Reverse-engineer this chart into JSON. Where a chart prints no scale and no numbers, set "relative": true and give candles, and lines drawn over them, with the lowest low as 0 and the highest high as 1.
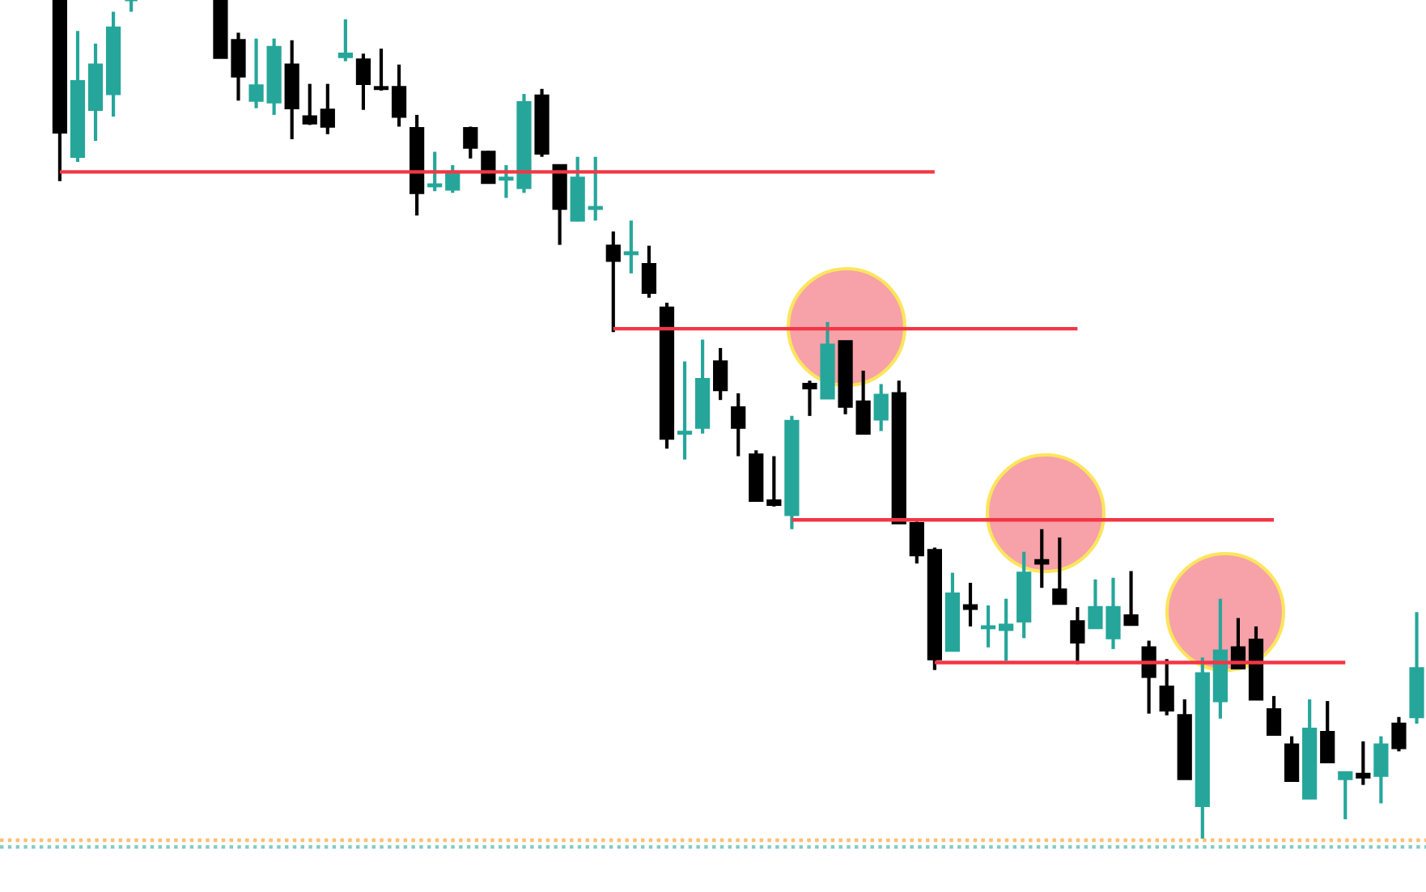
{
  "chart_data": {
    "type": "candlestick",
    "relative": true,
    "tick_labels": false,
    "categories": [
      null,
      null,
      null,
      null,
      null,
      null,
      null,
      null,
      null,
      null,
      null,
      null,
      null,
      null,
      null,
      null,
      null,
      null,
      null,
      null,
      null,
      null,
      null,
      null,
      null,
      null,
      null,
      null,
      null,
      null,
      null,
      null,
      null,
      null,
      null,
      null,
      null,
      null,
      null,
      null,
      null,
      null,
      null,
      null,
      null,
      null,
      null,
      null,
      null,
      null,
      null,
      null,
      null,
      null,
      null,
      null,
      null,
      null,
      null,
      null,
      null,
      null,
      null,
      null,
      null,
      null,
      null,
      null,
      null,
      null,
      null,
      null,
      null,
      null,
      null,
      null,
      null
    ],
    "ohlc": [
      [
        1.0,
        1.0,
        0.784,
        0.842
      ],
      [
        0.813,
        0.963,
        0.807,
        0.903
      ],
      [
        0.869,
        0.948,
        0.832,
        0.923
      ],
      [
        0.888,
        0.986,
        0.861,
        0.967
      ],
      [
        1.0,
        1.0,
        0.986,
        1.0
      ],
      null,
      null,
      null,
      null,
      [
        1.0,
        1.0,
        0.931,
        0.931
      ],
      [
        0.952,
        0.961,
        0.88,
        0.909
      ],
      [
        0.88,
        0.954,
        0.871,
        0.898
      ],
      [
        0.878,
        0.954,
        0.863,
        0.944
      ],
      [
        0.923,
        0.952,
        0.834,
        0.871
      ],
      [
        0.861,
        0.9,
        0.851,
        0.853
      ],
      [
        0.869,
        0.9,
        0.84,
        0.849
      ],
      [
        0.932,
        0.977,
        0.927,
        0.936
      ],
      [
        0.929,
        0.936,
        0.869,
        0.9
      ],
      [
        0.896,
        0.942,
        0.892,
        0.894
      ],
      [
        0.896,
        0.923,
        0.849,
        0.861
      ],
      [
        0.847,
        0.863,
        0.743,
        0.77
      ],
      [
        0.778,
        0.819,
        0.772,
        0.78
      ],
      [
        0.774,
        0.803,
        0.77,
        0.795
      ],
      [
        0.847,
        0.849,
        0.811,
        0.824
      ],
      [
        0.819,
        0.82,
        0.782,
        0.782
      ],
      [
        0.786,
        0.803,
        0.764,
        0.788
      ],
      [
        0.776,
        0.888,
        0.77,
        0.878
      ],
      [
        0.886,
        0.894,
        0.813,
        0.817
      ],
      [
        0.803,
        0.803,
        0.708,
        0.751
      ],
      [
        0.737,
        0.813,
        0.736,
        0.788
      ],
      [
        0.751,
        0.813,
        0.737,
        0.753
      ],
      [
        0.707,
        0.724,
        0.604,
        0.689
      ],
      [
        0.697,
        0.737,
        0.674,
        0.699
      ],
      [
        0.685,
        0.707,
        0.645,
        0.651
      ],
      [
        0.633,
        0.639,
        0.465,
        0.477
      ],
      [
        0.483,
        0.569,
        0.452,
        0.485
      ],
      [
        0.49,
        0.595,
        0.483,
        0.548
      ],
      [
        0.569,
        0.585,
        0.523,
        0.535
      ],
      [
        0.514,
        0.531,
        0.456,
        0.49
      ],
      [
        0.458,
        0.463,
        0.403,
        0.403
      ],
      [
        0.403,
        0.456,
        0.396,
        0.398
      ],
      [
        0.386,
        0.504,
        0.369,
        0.498
      ],
      [
        0.542,
        0.546,
        0.504,
        0.537
      ],
      [
        0.525,
        0.616,
        0.525,
        0.589
      ],
      [
        0.593,
        0.593,
        0.506,
        0.515
      ],
      [
        0.521,
        0.558,
        0.483,
        0.483
      ],
      [
        0.5,
        0.542,
        0.486,
        0.529
      ],
      [
        0.531,
        0.546,
        0.376,
        0.376
      ],
      [
        0.376,
        0.378,
        0.328,
        0.338
      ],
      [
        0.344,
        0.347,
        0.201,
        0.214
      ],
      [
        0.224,
        0.317,
        0.224,
        0.292
      ],
      [
        0.278,
        0.305,
        0.253,
        0.274
      ],
      [
        0.251,
        0.278,
        0.228,
        0.253
      ],
      [
        0.249,
        0.286,
        0.212,
        0.255
      ],
      [
        0.259,
        0.342,
        0.239,
        0.317
      ],
      [
        0.332,
        0.369,
        0.299,
        0.328
      ],
      [
        0.297,
        0.359,
        0.28,
        0.28
      ],
      [
        0.259,
        0.276,
        0.208,
        0.234
      ],
      [
        0.251,
        0.309,
        0.251,
        0.276
      ],
      [
        0.239,
        0.311,
        0.226,
        0.276
      ],
      [
        0.266,
        0.319,
        0.255,
        0.255
      ],
      [
        0.228,
        0.236,
        0.149,
        0.193
      ],
      [
        0.181,
        0.214,
        0.147,
        0.153
      ],
      [
        0.147,
        0.166,
        0.071,
        0.071
      ],
      [
        0.039,
        0.216,
        0.0,
        0.197
      ],
      [
        0.164,
        0.286,
        0.143,
        0.224
      ],
      [
        0.228,
        0.263,
        0.203,
        0.203
      ],
      [
        0.237,
        0.253,
        0.166,
        0.166
      ],
      [
        0.154,
        0.17,
        0.124,
        0.124
      ],
      [
        0.112,
        0.122,
        0.069,
        0.069
      ],
      [
        0.048,
        0.166,
        0.048,
        0.131
      ],
      [
        0.127,
        0.164,
        0.091,
        0.091
      ],
      [
        0.071,
        0.079,
        0.023,
        0.079
      ],
      [
        0.077,
        0.116,
        0.064,
        0.073
      ],
      [
        0.075,
        0.122,
        0.042,
        0.112
      ],
      [
        0.137,
        0.145,
        0.104,
        0.108
      ],
      [
        0.145,
        0.27,
        0.137,
        0.203
      ]
    ],
    "colors": [
      "#000000",
      "#26a69a",
      "#26a69a",
      "#26a69a",
      "#26a69a",
      null,
      null,
      null,
      null,
      "#000000",
      "#000000",
      "#26a69a",
      "#26a69a",
      "#000000",
      "#000000",
      "#000000",
      "#26a69a",
      "#000000",
      "#000000",
      "#000000",
      "#000000",
      "#26a69a",
      "#26a69a",
      "#000000",
      "#000000",
      "#26a69a",
      "#26a69a",
      "#000000",
      "#000000",
      "#26a69a",
      "#26a69a",
      "#000000",
      "#26a69a",
      "#000000",
      "#000000",
      "#26a69a",
      "#26a69a",
      "#000000",
      "#000000",
      "#000000",
      "#000000",
      "#26a69a",
      "#000000",
      "#26a69a",
      "#000000",
      "#000000",
      "#26a69a",
      "#000000",
      "#000000",
      "#000000",
      "#26a69a",
      "#000000",
      "#26a69a",
      "#26a69a",
      "#26a69a",
      "#000000",
      "#000000",
      "#000000",
      "#26a69a",
      "#26a69a",
      "#000000",
      "#000000",
      "#000000",
      "#000000",
      "#26a69a",
      "#26a69a",
      "#000000",
      "#000000",
      "#000000",
      "#000000",
      "#26a69a",
      "#000000",
      "#26a69a",
      "#000000",
      "#26a69a",
      "#000000",
      "#26a69a"
    ],
    "series": [
      {
        "type": "line",
        "color": "#f23645",
        "values": [
          0.795,
          0.795,
          0.795,
          0.795,
          0.795,
          0.795,
          0.795,
          0.795,
          0.795,
          0.795,
          0.795,
          0.795,
          0.795,
          0.795,
          0.795,
          0.795,
          0.795,
          0.795,
          0.795,
          0.795,
          0.795,
          0.795,
          0.795,
          0.795,
          0.795,
          0.795,
          0.795,
          0.795,
          0.795,
          0.795,
          0.795,
          0.795,
          0.795,
          0.795,
          0.795,
          0.795,
          0.795,
          0.795,
          0.795,
          0.795,
          0.795,
          0.795,
          0.795,
          0.795,
          0.795,
          0.795,
          0.795,
          0.795,
          0.795,
          0.795,
          null,
          null,
          null,
          null,
          null,
          null,
          null,
          null,
          null,
          null,
          null,
          null,
          null,
          null,
          null,
          null,
          null,
          null,
          null,
          null,
          null,
          null,
          null,
          null,
          null,
          null,
          null
        ]
      },
      {
        "type": "line",
        "color": "#f23645",
        "values": [
          null,
          null,
          null,
          null,
          null,
          null,
          null,
          null,
          null,
          null,
          null,
          null,
          null,
          null,
          null,
          null,
          null,
          null,
          null,
          null,
          null,
          null,
          null,
          null,
          null,
          null,
          null,
          null,
          null,
          null,
          null,
          0.608,
          0.608,
          0.608,
          0.608,
          0.608,
          0.608,
          0.608,
          0.608,
          0.608,
          0.608,
          0.608,
          0.608,
          0.608,
          0.608,
          0.608,
          0.608,
          0.608,
          0.608,
          0.608,
          0.608,
          0.608,
          0.608,
          0.608,
          0.608,
          0.608,
          0.608,
          0.608,
          null,
          null,
          null,
          null,
          null,
          null,
          null,
          null,
          null,
          null,
          null,
          null,
          null,
          null,
          null,
          null,
          null,
          null,
          null
        ]
      },
      {
        "type": "line",
        "color": "#f23645",
        "values": [
          null,
          null,
          null,
          null,
          null,
          null,
          null,
          null,
          null,
          null,
          null,
          null,
          null,
          null,
          null,
          null,
          null,
          null,
          null,
          null,
          null,
          null,
          null,
          null,
          null,
          null,
          null,
          null,
          null,
          null,
          null,
          null,
          null,
          null,
          null,
          null,
          null,
          null,
          null,
          null,
          null,
          0.38,
          0.38,
          0.38,
          0.38,
          0.38,
          0.38,
          0.38,
          0.38,
          0.38,
          0.38,
          0.38,
          0.38,
          0.38,
          0.38,
          0.38,
          0.38,
          0.38,
          0.38,
          0.38,
          0.38,
          0.38,
          0.38,
          0.38,
          0.38,
          0.38,
          0.38,
          0.38,
          0.38,
          null,
          null,
          null,
          null,
          null,
          null,
          null,
          null
        ]
      },
      {
        "type": "line",
        "color": "#f23645",
        "values": [
          null,
          null,
          null,
          null,
          null,
          null,
          null,
          null,
          null,
          null,
          null,
          null,
          null,
          null,
          null,
          null,
          null,
          null,
          null,
          null,
          null,
          null,
          null,
          null,
          null,
          null,
          null,
          null,
          null,
          null,
          null,
          null,
          null,
          null,
          null,
          null,
          null,
          null,
          null,
          null,
          null,
          null,
          null,
          null,
          null,
          null,
          null,
          null,
          null,
          0.21,
          0.21,
          0.21,
          0.21,
          0.21,
          0.21,
          0.21,
          0.21,
          0.21,
          0.21,
          0.21,
          0.21,
          0.21,
          0.21,
          0.21,
          0.21,
          0.21,
          0.21,
          0.21,
          0.21,
          0.21,
          0.21,
          0.21,
          0.21,
          null,
          null,
          null,
          null
        ]
      }
    ],
    "ref_lines": [
      {
        "axis": "y",
        "value": -0.002,
        "color": "#ffbf70",
        "line_style": "dotted"
      },
      {
        "axis": "y",
        "value": -0.01,
        "color": "#80cbc4",
        "line_style": "dotted"
      }
    ]
  }
}
